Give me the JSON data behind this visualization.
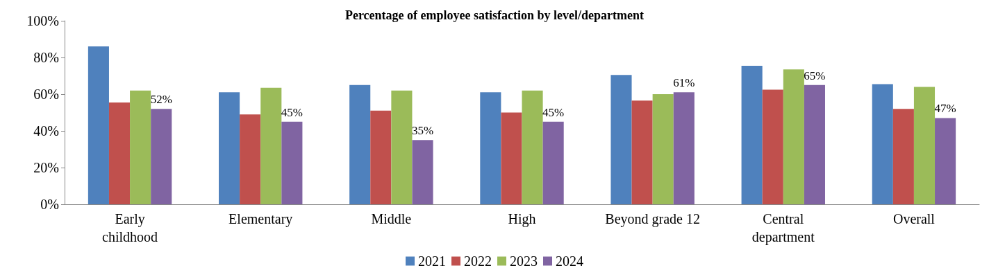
{
  "chart_data": {
    "type": "bar",
    "title": "Percentage of employee satisfaction by level/department",
    "categories": [
      "Early\nchildhood",
      "Elementary",
      "Middle",
      "High",
      "Beyond grade 12",
      "Central\ndepartment",
      "Overall"
    ],
    "series": [
      {
        "name": "2021",
        "color": "#4f81bd",
        "values": [
          86,
          61,
          65,
          61,
          70.5,
          75.5,
          65.5
        ]
      },
      {
        "name": "2022",
        "color": "#c0504d",
        "values": [
          55.5,
          49,
          51,
          50,
          56.5,
          62.5,
          52
        ]
      },
      {
        "name": "2023",
        "color": "#9bbb59",
        "values": [
          62,
          63.5,
          62,
          62,
          60,
          73.5,
          64
        ]
      },
      {
        "name": "2024",
        "color": "#8064a2",
        "values": [
          52,
          45,
          35,
          45,
          61,
          65,
          47
        ],
        "value_labels": [
          "52%",
          "45%",
          "35%",
          "45%",
          "61%",
          "65%",
          "47%"
        ]
      }
    ],
    "ylim": [
      0,
      100
    ],
    "yticks": [
      {
        "value": 0,
        "label": "0%"
      },
      {
        "value": 20,
        "label": "20%"
      },
      {
        "value": 40,
        "label": "40%"
      },
      {
        "value": 60,
        "label": "60%"
      },
      {
        "value": 80,
        "label": "80%"
      },
      {
        "value": 100,
        "label": "100%"
      }
    ],
    "grid": false,
    "legend": "bottom"
  }
}
